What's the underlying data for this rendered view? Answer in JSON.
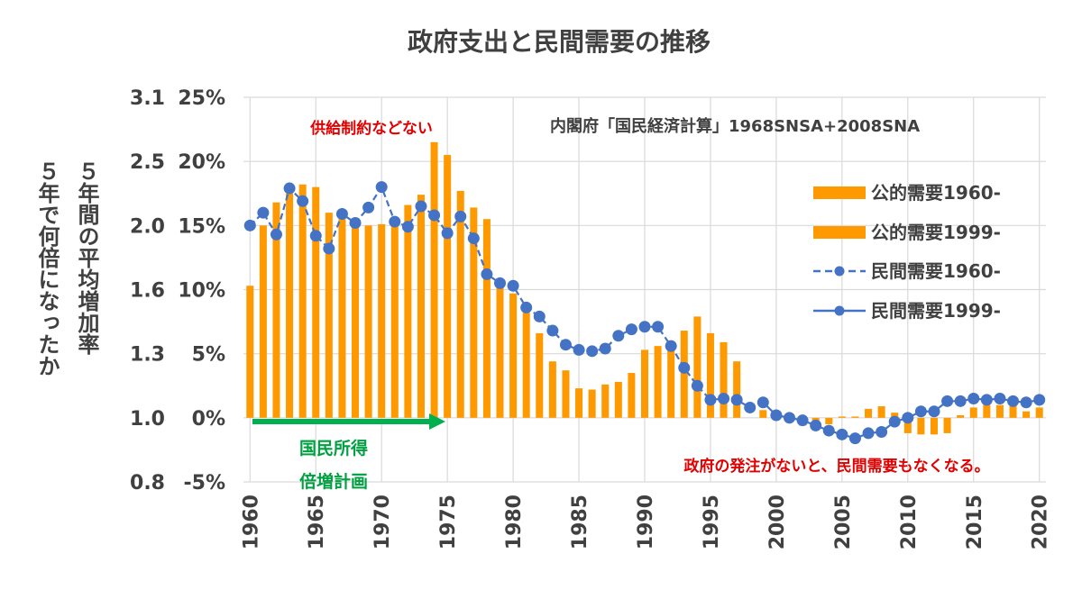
{
  "chart_data": {
    "type": "bar+line",
    "title": "政府支出と民間需要の推移",
    "ylabel_col1": "５年間の平均増加率",
    "ylabel_col2": "５年で何倍になったか",
    "y_ticks_pct": [
      "25%",
      "20%",
      "15%",
      "10%",
      "5%",
      "0%",
      "-5%"
    ],
    "y_ticks_mult": [
      "3.1",
      "2.5",
      "2.0",
      "1.6",
      "1.3",
      "1.0",
      "0.8"
    ],
    "ylim": [
      -5,
      25
    ],
    "x_ticks": [
      "1960",
      "1965",
      "1970",
      "1975",
      "1980",
      "1985",
      "1990",
      "1995",
      "2000",
      "2005",
      "2010",
      "2015",
      "2020"
    ],
    "xlim": [
      1959.5,
      2020.5
    ],
    "source_note": "内閣府「国民経済計算」1968SNSA+2008SNA",
    "annotations": {
      "supply": "供給制約などない",
      "plan_line1": "国民所得",
      "plan_line2": "倍増計画",
      "conclusion": "政府の発注がないと、民間需要もなくなる。"
    },
    "series": [
      {
        "name": "公的需要1960-",
        "kind": "bar",
        "color": "#ff9900",
        "x": [
          1960,
          1961,
          1962,
          1963,
          1964,
          1965,
          1966,
          1967,
          1968,
          1969,
          1970,
          1971,
          1972,
          1973,
          1974,
          1975,
          1976,
          1977,
          1978,
          1979,
          1980,
          1981,
          1982,
          1983,
          1984,
          1985,
          1986,
          1987,
          1988,
          1989,
          1990,
          1991,
          1992,
          1993,
          1994,
          1995,
          1996,
          1997
        ],
        "values": [
          10.3,
          15,
          16.8,
          17.5,
          18.2,
          18,
          16,
          15.5,
          14.9,
          15,
          15.1,
          15.3,
          16.6,
          17.4,
          21.5,
          20.5,
          17.7,
          16.4,
          15.5,
          10.5,
          9.7,
          8.2,
          6.6,
          4.4,
          3.7,
          2.3,
          2.2,
          2.6,
          2.8,
          3.5,
          5.3,
          5.6,
          5.3,
          6.8,
          7.9,
          6.6,
          5.9,
          4.4
        ]
      },
      {
        "name": "公的需要1999-",
        "kind": "bar",
        "color": "#ff9900",
        "x": [
          1999,
          2000,
          2001,
          2002,
          2003,
          2004,
          2005,
          2006,
          2007,
          2008,
          2009,
          2010,
          2011,
          2012,
          2013,
          2014,
          2015,
          2016,
          2017,
          2018,
          2019,
          2020
        ],
        "values": [
          0.6,
          0.4,
          -0.3,
          -0.6,
          -0.9,
          -0.5,
          0.1,
          0.1,
          0.7,
          0.9,
          0.4,
          -1.2,
          -1.3,
          -1.3,
          -1.2,
          0.2,
          0.8,
          1.0,
          1.0,
          1.0,
          0.5,
          0.8
        ]
      },
      {
        "name": "民間需要1960-",
        "kind": "line",
        "color": "#4472c4",
        "x": [
          1960,
          1961,
          1962,
          1963,
          1964,
          1965,
          1966,
          1967,
          1968,
          1969,
          1970,
          1971,
          1972,
          1973,
          1974,
          1975,
          1976,
          1977,
          1978,
          1979,
          1980,
          1981,
          1982,
          1983,
          1984,
          1985,
          1986,
          1987,
          1988,
          1989,
          1990,
          1991,
          1992,
          1993,
          1994,
          1995,
          1996,
          1997,
          1998
        ],
        "values": [
          15,
          16,
          14.3,
          17.9,
          16.9,
          14.2,
          13.2,
          15.9,
          15.2,
          16.4,
          18,
          15.3,
          14.9,
          16.5,
          15.8,
          14.4,
          15.7,
          14,
          11.2,
          10.5,
          10.3,
          8.6,
          7.9,
          6.8,
          5.7,
          5.3,
          5.2,
          5.4,
          6.4,
          6.9,
          7.1,
          7.1,
          5.6,
          3.9,
          2.5,
          1.4,
          1.5,
          1.4,
          0.8
        ]
      },
      {
        "name": "民間需要1999-",
        "kind": "line",
        "color": "#4472c4",
        "x": [
          1999,
          2000,
          2001,
          2002,
          2003,
          2004,
          2005,
          2006,
          2007,
          2008,
          2009,
          2010,
          2011,
          2012,
          2013,
          2014,
          2015,
          2016,
          2017,
          2018,
          2019,
          2020
        ],
        "values": [
          1.2,
          0.2,
          0,
          -0.2,
          -0.6,
          -1.0,
          -1.3,
          -1.6,
          -1.2,
          -1.1,
          -0.3,
          0,
          0.5,
          0.5,
          1.3,
          1.3,
          1.5,
          1.4,
          1.5,
          1.3,
          1.2,
          1.4
        ]
      }
    ],
    "legend": [
      "公的需要1960-",
      "公的需要1999-",
      "民間需要1960-",
      "民間需要1999-"
    ]
  },
  "colors": {
    "bar": "#ff9900",
    "line": "#4472c4",
    "grid": "#d9d9d9",
    "arrow": "#00b050",
    "red_text": "#e00000"
  }
}
